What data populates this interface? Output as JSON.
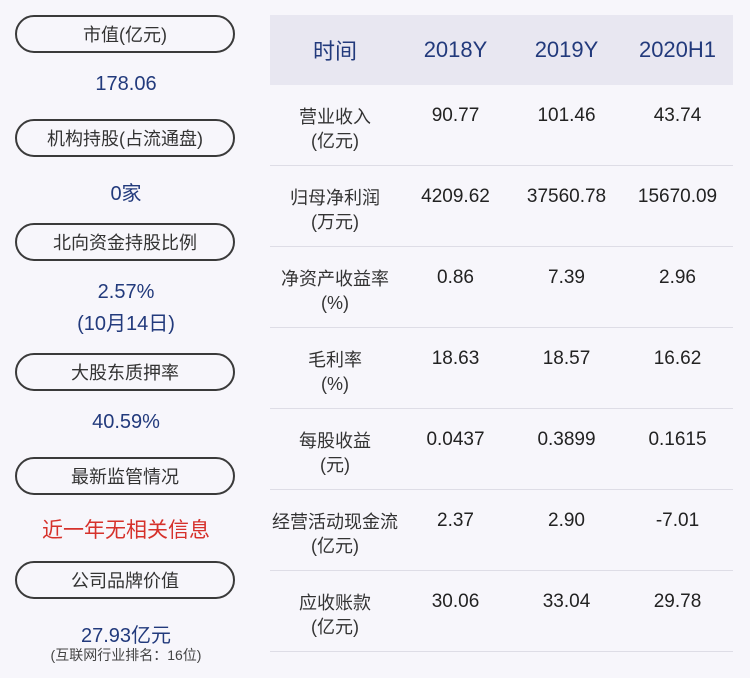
{
  "left_panel": {
    "market_cap": {
      "label": "市值(亿元)",
      "value": "178.06"
    },
    "institutions": {
      "label": "机构持股(占流通盘)",
      "value": "0家"
    },
    "northbound": {
      "label": "北向资金持股比例",
      "value": "2.57%",
      "date": "(10月14日)"
    },
    "pledge": {
      "label": "大股东质押率",
      "value": "40.59%"
    },
    "supervision": {
      "label": "最新监管情况",
      "value": "近一年无相关信息"
    },
    "brand": {
      "label": "公司品牌价值",
      "value": "27.93亿元",
      "note": "(互联网行业排名：16位)"
    }
  },
  "table": {
    "headers": [
      "时间",
      "2018Y",
      "2019Y",
      "2020H1"
    ],
    "rows": [
      {
        "label": "营业收入",
        "unit": "(亿元)",
        "values": [
          "90.77",
          "101.46",
          "43.74"
        ]
      },
      {
        "label": "归母净利润",
        "unit": "(万元)",
        "values": [
          "4209.62",
          "37560.78",
          "15670.09"
        ]
      },
      {
        "label": "净资产收益率",
        "unit": "(%)",
        "values": [
          "0.86",
          "7.39",
          "2.96"
        ]
      },
      {
        "label": "毛利率",
        "unit": "(%)",
        "values": [
          "18.63",
          "18.57",
          "16.62"
        ]
      },
      {
        "label": "每股收益",
        "unit": "(元)",
        "values": [
          "0.0437",
          "0.3899",
          "0.1615"
        ]
      },
      {
        "label": "经营活动现金流",
        "unit": "(亿元)",
        "values": [
          "2.37",
          "2.90",
          "-7.01"
        ]
      },
      {
        "label": "应收账款",
        "unit": "(亿元)",
        "values": [
          "30.06",
          "33.04",
          "29.78"
        ]
      }
    ]
  },
  "colors": {
    "value_blue": "#223a7c",
    "alert_red": "#d6312b",
    "header_bg": "#e8e7f1"
  }
}
